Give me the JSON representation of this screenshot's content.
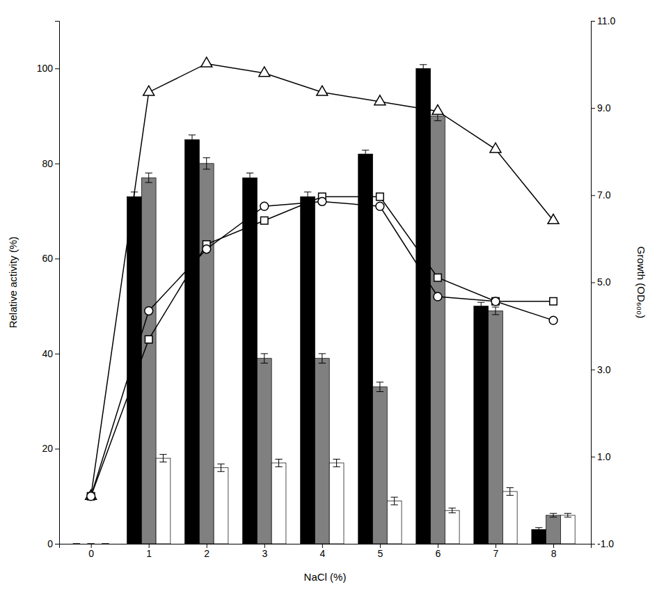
{
  "chart_data": {
    "type": "bar",
    "x": [
      0,
      1,
      2,
      3,
      4,
      5,
      6,
      7,
      8
    ],
    "xlim": [
      -0.55,
      8.65
    ],
    "xticks": [
      0,
      1,
      2,
      3,
      4,
      5,
      6,
      7,
      8
    ],
    "xlabel": "NaCl (%)",
    "ylabel": "Relative activity (%)",
    "ylim": [
      0,
      110
    ],
    "yticks": [
      0,
      20,
      40,
      60,
      80,
      100
    ],
    "y2label": "Growth (OD₆₀₀)",
    "y2lim": [
      -1.0,
      11.0
    ],
    "y2ticks": [
      {
        "value": -1.0,
        "label": "-1.0"
      },
      {
        "value": 1.0,
        "label": "1.0"
      },
      {
        "value": 3.0,
        "label": "3.0"
      },
      {
        "value": 5.0,
        "label": "5.0"
      },
      {
        "value": 7.0,
        "label": "7.0"
      },
      {
        "value": 9.0,
        "label": "9.0"
      },
      {
        "value": 11.0,
        "label": "11.0"
      }
    ],
    "grid": false,
    "series": [
      {
        "type": "bar",
        "color": "#000000",
        "values": [
          0,
          73,
          85,
          77,
          73,
          82,
          100,
          50,
          3
        ],
        "error": [
          0,
          1.0,
          1.0,
          1.0,
          1.0,
          0.8,
          0.8,
          0.8,
          0.4
        ]
      },
      {
        "type": "bar",
        "color": "#808080",
        "values": [
          0,
          77,
          80,
          39,
          39,
          33,
          90,
          49,
          6
        ],
        "error": [
          0,
          1.0,
          1.2,
          1.0,
          1.0,
          1.0,
          1.0,
          0.8,
          0.4
        ]
      },
      {
        "type": "bar",
        "color": "#ffffff",
        "values": [
          0,
          18,
          16,
          17,
          17,
          9,
          7,
          11,
          6
        ],
        "error": [
          0,
          0.8,
          0.8,
          0.8,
          0.8,
          0.8,
          0.5,
          0.8,
          0.4
        ]
      },
      {
        "type": "line",
        "color": "#000000",
        "marker": "triangle",
        "values": [
          10,
          95,
          101,
          99,
          95,
          93,
          91,
          83,
          68
        ]
      },
      {
        "type": "line",
        "color": "#000000",
        "marker": "square",
        "values": [
          10,
          43,
          63,
          68,
          73,
          73,
          56,
          51,
          51
        ]
      },
      {
        "type": "line",
        "color": "#000000",
        "marker": "circle",
        "values": [
          10,
          49,
          62,
          71,
          72,
          71,
          52,
          51,
          47
        ]
      }
    ]
  }
}
